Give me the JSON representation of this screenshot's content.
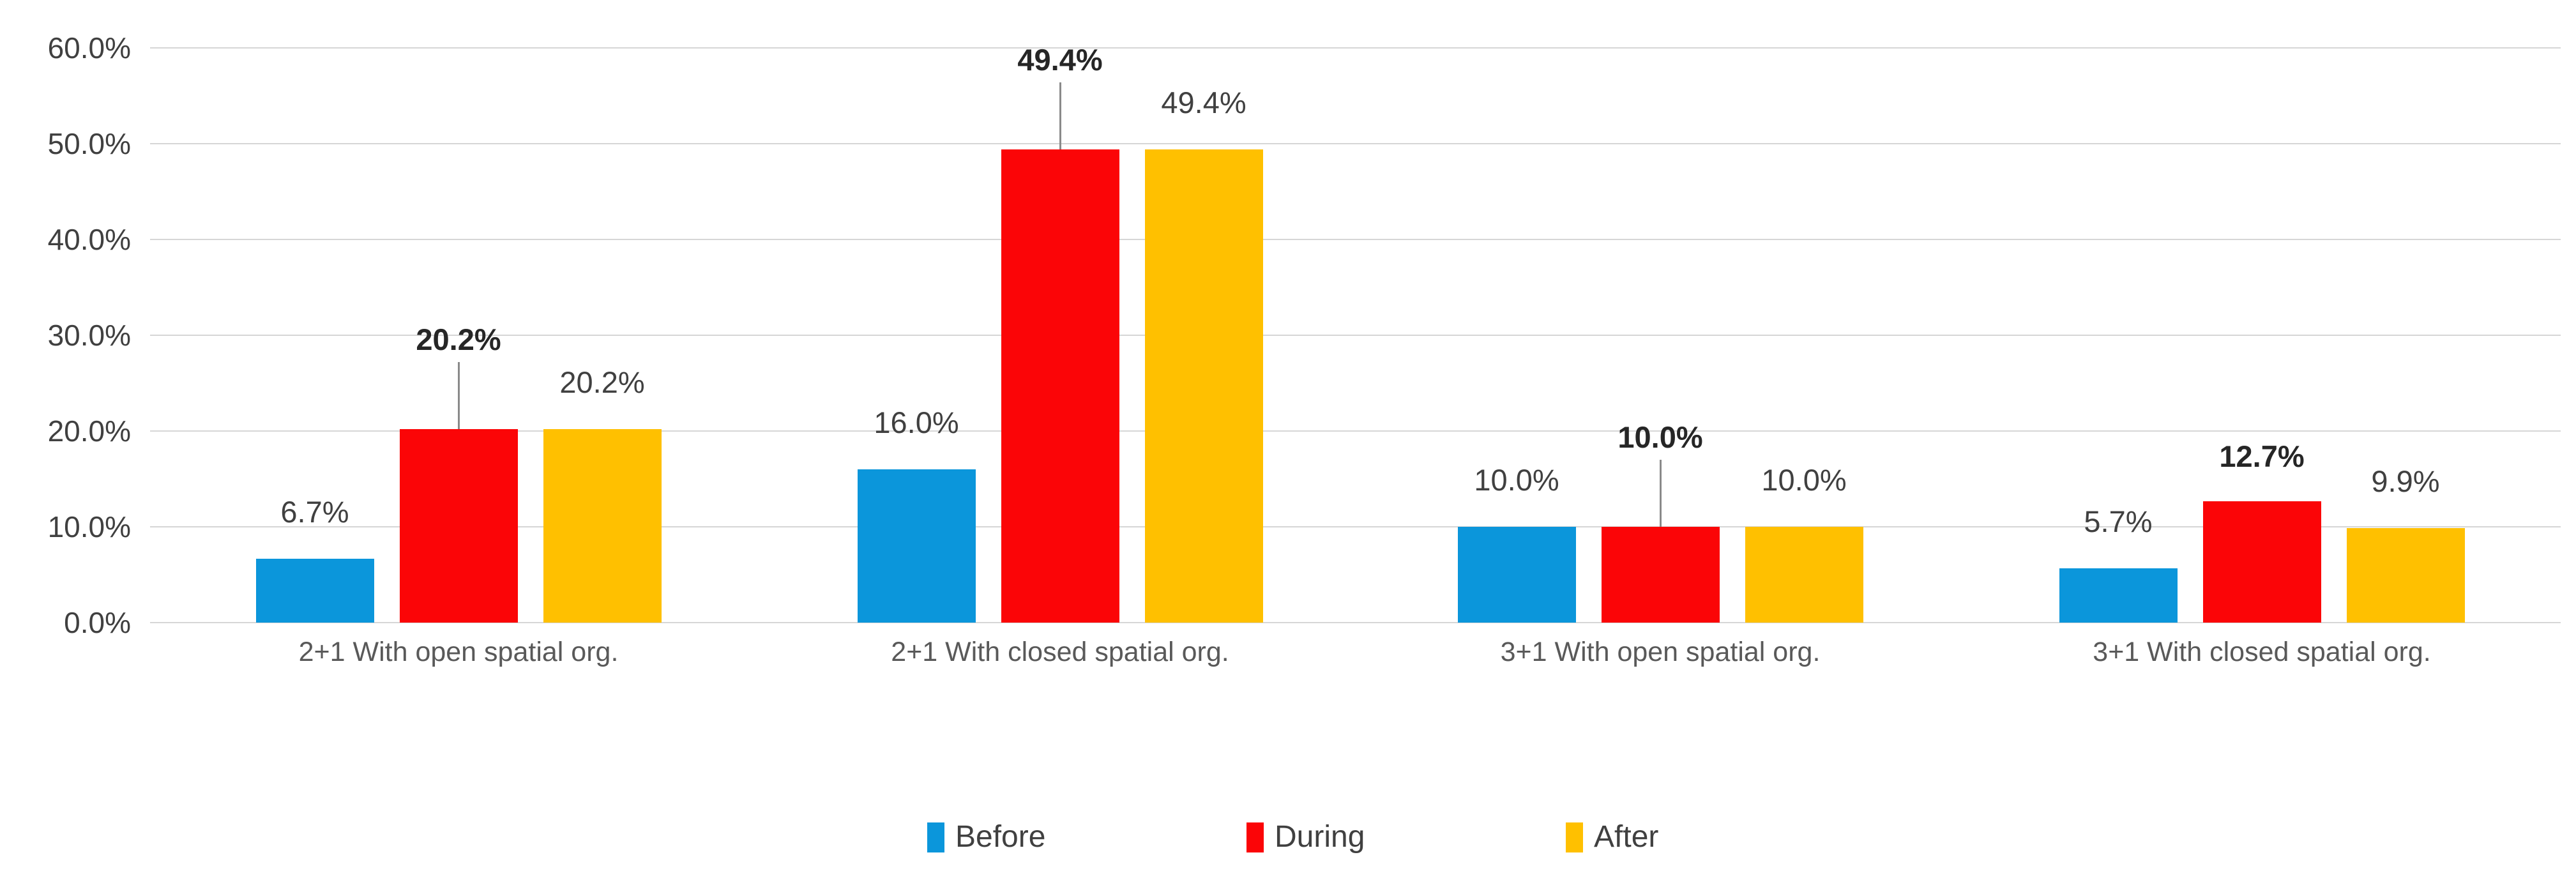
{
  "chart_data": {
    "type": "bar",
    "title": "",
    "categories": [
      "2+1 With open spatial org.",
      "2+1 With closed spatial org.",
      "3+1 With open spatial org.",
      "3+1 With closed spatial org."
    ],
    "series": [
      {
        "name": "Before",
        "color": "#0b96db",
        "values": [
          6.7,
          16.0,
          10.0,
          5.7
        ],
        "labels": [
          "6.7%",
          "16.0%",
          "10.0%",
          "5.7%"
        ],
        "label_bold": false
      },
      {
        "name": "During",
        "color": "#fb0507",
        "values": [
          20.2,
          49.4,
          10.0,
          12.7
        ],
        "labels": [
          "20.2%",
          "49.4%",
          "10.0%",
          "12.7%"
        ],
        "label_bold": true,
        "leader_lines": [
          true,
          true,
          true,
          false
        ]
      },
      {
        "name": "After",
        "color": "#ffc000",
        "values": [
          20.2,
          49.4,
          10.0,
          9.9
        ],
        "labels": [
          "20.2%",
          "49.4%",
          "10.0%",
          "9.9%"
        ],
        "label_bold": false
      }
    ],
    "y_axis": {
      "min": 0,
      "max": 60,
      "tick_step": 10,
      "tick_labels": [
        "60.0%",
        "50.0%",
        "40.0%",
        "30.0%",
        "20.0%",
        "10.0%",
        "0.0%"
      ]
    },
    "grid": true,
    "legend": {
      "position": "bottom",
      "items": [
        "Before",
        "During",
        "After"
      ]
    },
    "style_colors": {
      "gridline": "#d6d6d6",
      "axis_text": "#404040",
      "category_text": "#595959",
      "leader_line": "#8a8a8a",
      "bold_label_text": "#262626"
    }
  }
}
